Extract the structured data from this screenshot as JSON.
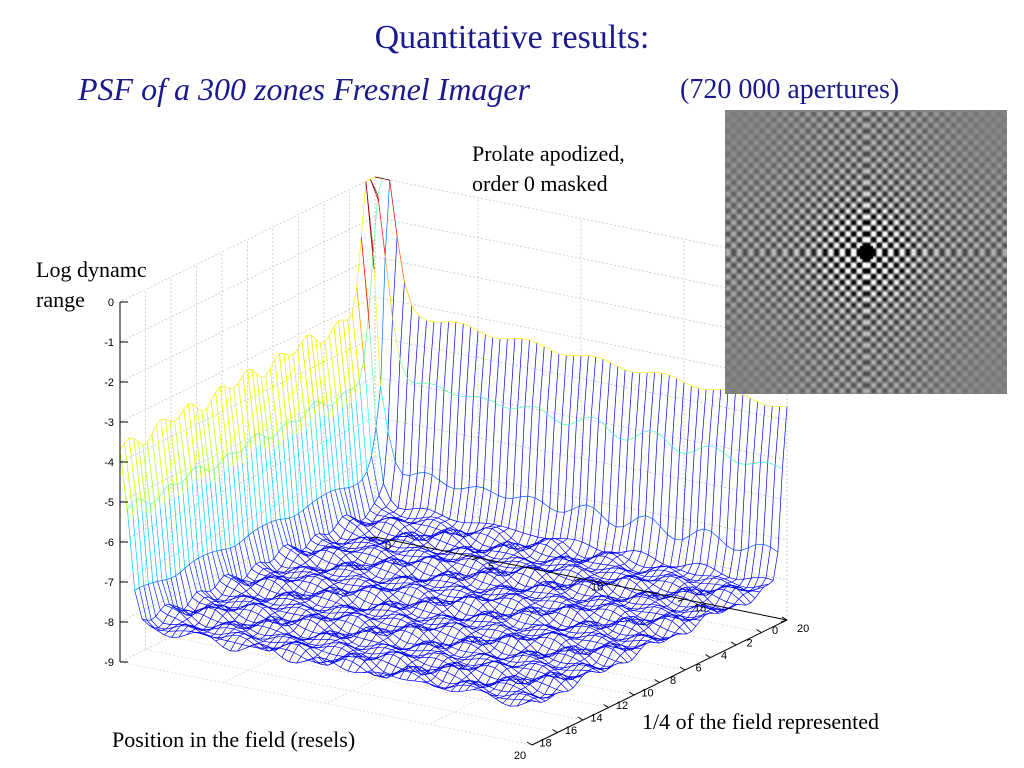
{
  "title": {
    "line1": "Quantitative results:",
    "line2": "PSF of a 300 zones Fresnel Imager",
    "line2_note": "(720 000 apertures)"
  },
  "annotations": {
    "prolate_line1": "Prolate apodized,",
    "prolate_line2": "order 0 masked",
    "zlabel_line1": "Log dynamc",
    "zlabel_line2": "range",
    "xlabel": "Position in the field (resels)",
    "ylabel": "1/4 of the field represented"
  },
  "chart_data": {
    "type": "surface-mesh",
    "title": "",
    "xlabel": "Position in the field (resels)",
    "ylabel": "1/4 of the field represented",
    "zlabel": "Log dynamc range",
    "xlim": [
      0,
      20
    ],
    "ylim": [
      0,
      20
    ],
    "zlim": [
      -9,
      0
    ],
    "x_ticks": [
      "0",
      "2",
      "4",
      "6",
      "8",
      "10",
      "12",
      "14",
      "16",
      "18",
      "20"
    ],
    "y_ticks": [
      "0",
      "5",
      "10",
      "15",
      "20"
    ],
    "z_ticks": [
      "0",
      "-1",
      "-2",
      "-3",
      "-4",
      "-5",
      "-6",
      "-7",
      "-8",
      "-9"
    ],
    "grid": true,
    "colormap": "jet",
    "central_peak": {
      "x": 0,
      "y": 0,
      "z": 0
    },
    "axis_ridge_level": -3.2,
    "ridge_edge_level_far": -4.0,
    "floor_level": -8.0
  },
  "colors": {
    "title": "#1a1a8c"
  }
}
